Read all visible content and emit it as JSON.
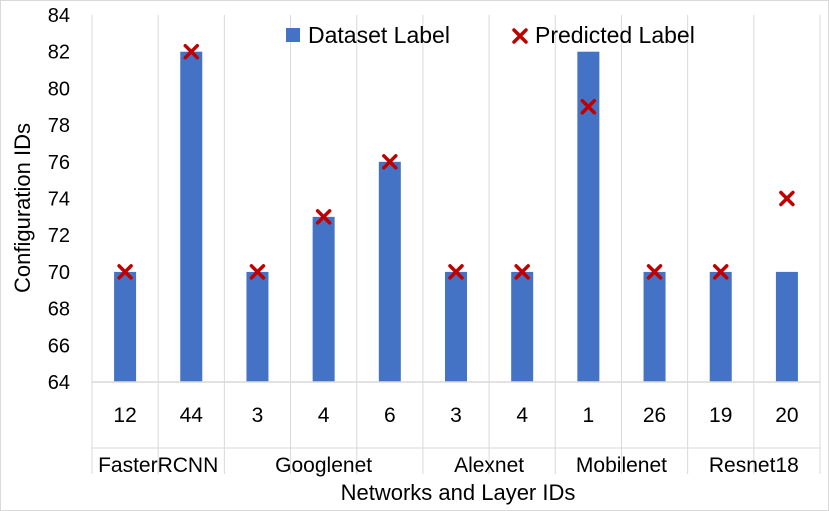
{
  "chart_data": {
    "type": "bar",
    "xlabel": "Networks and Layer IDs",
    "ylabel": "Configuration IDs",
    "ylim": [
      64,
      84
    ],
    "yticks": [
      64,
      66,
      68,
      70,
      72,
      74,
      76,
      78,
      80,
      82,
      84
    ],
    "grid": "vertical separators between categories",
    "legend_position": "top",
    "groups": [
      {
        "name": "FasterRCNN",
        "count": 2
      },
      {
        "name": "Googlenet",
        "count": 3
      },
      {
        "name": "Alexnet",
        "count": 2
      },
      {
        "name": "Mobilenet",
        "count": 2
      },
      {
        "name": "Resnet18",
        "count": 2
      }
    ],
    "categories": [
      "12",
      "44",
      "3",
      "4",
      "6",
      "3",
      "4",
      "1",
      "26",
      "19",
      "20"
    ],
    "series": [
      {
        "name": "Dataset Label",
        "kind": "bar",
        "color": "#4472c4",
        "values": [
          70,
          82,
          70,
          73,
          76,
          70,
          70,
          82,
          70,
          70,
          70
        ]
      },
      {
        "name": "Predicted Label",
        "kind": "marker",
        "marker": "x",
        "color": "#c00000",
        "values": [
          70,
          82,
          70,
          73,
          76,
          70,
          70,
          79,
          70,
          70,
          74
        ]
      }
    ]
  }
}
